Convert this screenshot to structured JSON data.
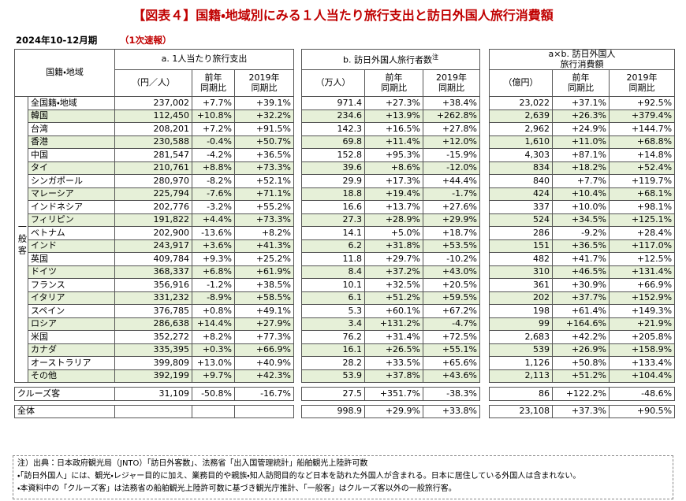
{
  "title": "【図表４】国籍・地域別にみる１人当たり旅行支出と訪日外国人旅行消費額",
  "period": "2024年10-12月期",
  "status": "（1次速報）",
  "table": {
    "header": {
      "region": "国籍・地域",
      "groups": [
        {
          "title": [
            "a. 1人当たり旅行支出"
          ],
          "unit": "（円／人）"
        },
        {
          "title": [
            "b. 訪日外国人旅行者数"
          ],
          "note_mark": "注",
          "unit": "（万人）"
        },
        {
          "title": [
            "a×b. 訪日外国人",
            "旅行消費額"
          ],
          "unit": "（億円）"
        }
      ],
      "sub_columns": [
        [
          "前年",
          "同期比"
        ],
        [
          "2019年",
          "同期比"
        ]
      ]
    },
    "group_label": "一般客",
    "rows": [
      {
        "name": "全国籍・地域",
        "cells": [
          "237,002",
          "+7.7%",
          "+39.1%",
          "971.4",
          "+27.3%",
          "+38.4%",
          "23,022",
          "+37.1%",
          "+92.5%"
        ]
      },
      {
        "name": "韓国",
        "cells": [
          "112,450",
          "+10.8%",
          "+32.2%",
          "234.6",
          "+13.9%",
          "+262.8%",
          "2,639",
          "+26.3%",
          "+379.4%"
        ]
      },
      {
        "name": "台湾",
        "cells": [
          "208,201",
          "+7.2%",
          "+91.5%",
          "142.3",
          "+16.5%",
          "+27.8%",
          "2,962",
          "+24.9%",
          "+144.7%"
        ]
      },
      {
        "name": "香港",
        "cells": [
          "230,588",
          "-0.4%",
          "+50.7%",
          "69.8",
          "+11.4%",
          "+12.0%",
          "1,610",
          "+11.0%",
          "+68.8%"
        ]
      },
      {
        "name": "中国",
        "cells": [
          "281,547",
          "-4.2%",
          "+36.5%",
          "152.8",
          "+95.3%",
          "-15.9%",
          "4,303",
          "+87.1%",
          "+14.8%"
        ]
      },
      {
        "name": "タイ",
        "cells": [
          "210,761",
          "+8.8%",
          "+73.3%",
          "39.6",
          "+8.6%",
          "-12.0%",
          "834",
          "+18.2%",
          "+52.4%"
        ]
      },
      {
        "name": "シンガポール",
        "cells": [
          "280,970",
          "-8.2%",
          "+52.1%",
          "29.9",
          "+17.3%",
          "+44.4%",
          "840",
          "+7.7%",
          "+119.7%"
        ]
      },
      {
        "name": "マレーシア",
        "cells": [
          "225,794",
          "-7.6%",
          "+71.1%",
          "18.8",
          "+19.4%",
          "-1.7%",
          "424",
          "+10.4%",
          "+68.1%"
        ]
      },
      {
        "name": "インドネシア",
        "cells": [
          "202,776",
          "-3.2%",
          "+55.2%",
          "16.6",
          "+13.7%",
          "+27.6%",
          "337",
          "+10.0%",
          "+98.1%"
        ]
      },
      {
        "name": "フィリピン",
        "cells": [
          "191,822",
          "+4.4%",
          "+73.3%",
          "27.3",
          "+28.9%",
          "+29.9%",
          "524",
          "+34.5%",
          "+125.1%"
        ]
      },
      {
        "name": "ベトナム",
        "cells": [
          "202,900",
          "-13.6%",
          "+8.2%",
          "14.1",
          "+5.0%",
          "+18.7%",
          "286",
          "-9.2%",
          "+28.4%"
        ]
      },
      {
        "name": "インド",
        "cells": [
          "243,917",
          "+3.6%",
          "+41.3%",
          "6.2",
          "+31.8%",
          "+53.5%",
          "151",
          "+36.5%",
          "+117.0%"
        ]
      },
      {
        "name": "英国",
        "cells": [
          "409,784",
          "+9.3%",
          "+25.2%",
          "11.8",
          "+29.7%",
          "-10.2%",
          "482",
          "+41.7%",
          "+12.5%"
        ]
      },
      {
        "name": "ドイツ",
        "cells": [
          "368,337",
          "+6.8%",
          "+61.9%",
          "8.4",
          "+37.2%",
          "+43.0%",
          "310",
          "+46.5%",
          "+131.4%"
        ]
      },
      {
        "name": "フランス",
        "cells": [
          "356,916",
          "-1.2%",
          "+38.5%",
          "10.1",
          "+32.5%",
          "+20.5%",
          "361",
          "+30.9%",
          "+66.9%"
        ]
      },
      {
        "name": "イタリア",
        "cells": [
          "331,232",
          "-8.9%",
          "+58.5%",
          "6.1",
          "+51.2%",
          "+59.5%",
          "202",
          "+37.7%",
          "+152.9%"
        ]
      },
      {
        "name": "スペイン",
        "cells": [
          "376,785",
          "+0.8%",
          "+49.1%",
          "5.3",
          "+60.1%",
          "+67.2%",
          "198",
          "+61.4%",
          "+149.3%"
        ]
      },
      {
        "name": "ロシア",
        "cells": [
          "286,638",
          "+14.4%",
          "+27.9%",
          "3.4",
          "+131.2%",
          "-4.7%",
          "99",
          "+164.6%",
          "+21.9%"
        ]
      },
      {
        "name": "米国",
        "cells": [
          "352,272",
          "+8.2%",
          "+77.3%",
          "76.2",
          "+31.4%",
          "+72.5%",
          "2,683",
          "+42.2%",
          "+205.8%"
        ]
      },
      {
        "name": "カナダ",
        "cells": [
          "335,395",
          "+0.3%",
          "+66.9%",
          "16.1",
          "+26.5%",
          "+55.1%",
          "539",
          "+26.9%",
          "+158.9%"
        ]
      },
      {
        "name": "オーストラリア",
        "cells": [
          "399,809",
          "+13.0%",
          "+40.9%",
          "28.2",
          "+33.5%",
          "+65.6%",
          "1,126",
          "+50.8%",
          "+133.4%"
        ]
      },
      {
        "name": "その他",
        "cells": [
          "392,199",
          "+9.7%",
          "+42.3%",
          "53.9",
          "+37.8%",
          "+43.6%",
          "2,113",
          "+51.2%",
          "+104.4%"
        ]
      }
    ],
    "cruise": {
      "name": "クルーズ客",
      "cells": [
        "31,109",
        "-50.8%",
        "-16.7%",
        "27.5",
        "+351.7%",
        "-38.3%",
        "86",
        "+122.2%",
        "-48.6%"
      ]
    },
    "total": {
      "name": "全体",
      "cells": [
        null,
        null,
        null,
        "998.9",
        "+29.9%",
        "+33.8%",
        "23,108",
        "+37.3%",
        "+90.5%"
      ]
    }
  },
  "notes": [
    "注）出典：日本政府観光局（JNTO）「訪日外客数」、法務省「出入国管理統計」船舶観光上陸許可数",
    "・「訪日外国人」には、観光・レジャー目的に加え、業務目的や親族・知人訪問目的など日本を訪れた外国人が含まれる。日本に居住している外国人は含まれない。",
    "・本資料中の「クルーズ客」は法務省の船舶観光上陸許可数に基づき観光庁推計、「一般客」はクルーズ客以外の一般旅行客。"
  ]
}
